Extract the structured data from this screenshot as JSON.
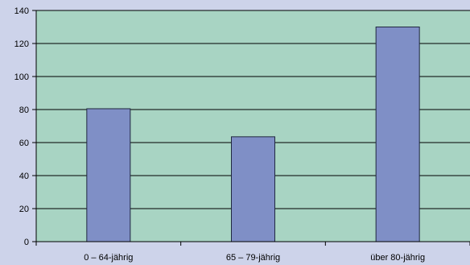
{
  "chart_data": {
    "type": "bar",
    "categories": [
      "0 – 64-jährig",
      "65 – 79-jährig",
      "über 80-jährig"
    ],
    "values": [
      80.5,
      63.5,
      130
    ],
    "ylim": [
      0,
      140
    ],
    "yticks": [
      0,
      20,
      40,
      60,
      80,
      100,
      120,
      140
    ],
    "grid": true,
    "title": "",
    "xlabel": "",
    "ylabel": "",
    "colors": {
      "background": "#cdd3ea",
      "plot_area": "#a8d4c3",
      "bar": "#7f8fc6",
      "bar_stroke": "#202840",
      "grid": "#000000"
    }
  }
}
